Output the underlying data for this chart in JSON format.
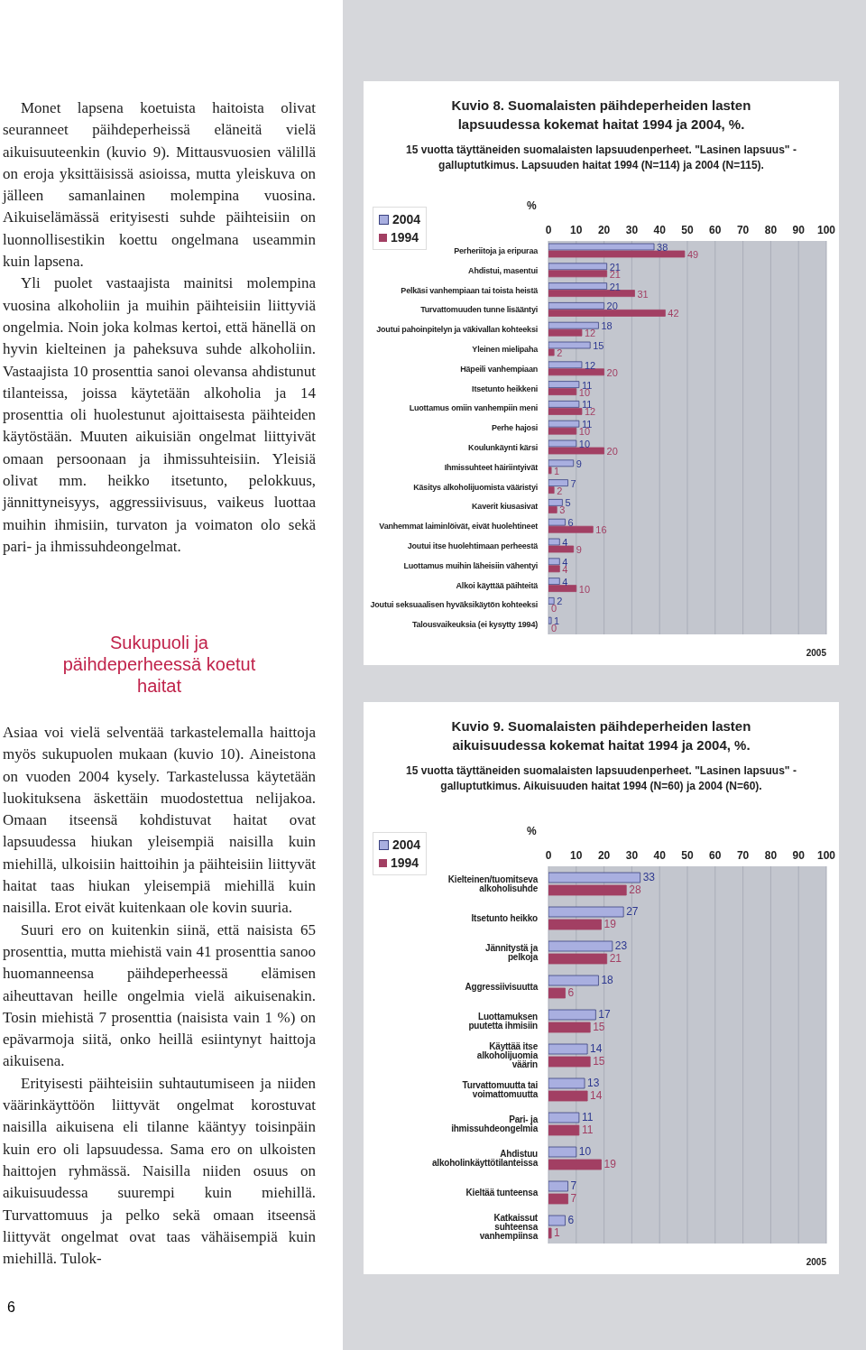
{
  "chart_data": [
    {
      "type": "other",
      "annotations": [
        "Monet lapsena koetuista haitoista olivat seuranneet päihdeperheissä eläneitä vielä aikuisuuteenkin (kuvio 9). Mittausvuosien välillä on eroja yksittäisissä asioissa, mutta yleiskuva on jälleen samanlainen molempina vuosina. Aikuiselämässä erityisesti suhde päihteisiin on luonnollisestikin koettu ongelmana useammin kuin lapsena.",
        "Yli puolet vastaajista mainitsi molempina vuosina alkoholiin ja muihin päihteisiin liittyviä ongelmia. Noin joka kolmas kertoi, että hänellä on hyvin kielteinen ja paheksuva suhde alkoholiin. Vastaajista 10 prosenttia sanoi olevansa ahdistunut tilanteissa, joissa käytetään alkoholia ja 14 prosenttia oli huolestunut ajoittaisesta päihteiden käytöstään. Muuten aikuisiän ongelmat liittyivät omaan persoonaan ja ihmissuhteisiin. Yleisiä olivat mm. heikko itsetunto, pelokkuus, jännittyneisyys, aggressiivisuus, vaikeus luottaa muihin ihmisiin, turvaton ja voimaton olo sekä pari- ja ihmissuhdeongelmat."
      ]
    },
    {
      "type": "other",
      "title": "Sukupuoli ja päihdeperheessä koetut haitat",
      "annotations": [
        "Asiaa voi vielä selventää tarkastelemalla haittoja myös sukupuolen mukaan (kuvio 10). Aineistona on vuoden 2004 kysely. Tarkastelussa käytetään luokituksena äskettäin muodostettua nelijakoa. Omaan itseensä kohdistuvat haitat ovat lapsuudessa hiukan yleisempiä naisilla kuin miehillä, ulkoisiin haittoihin ja päihteisiin liittyvät haitat taas hiukan yleisempiä miehillä kuin naisilla. Erot eivät kuitenkaan ole kovin suuria.",
        "Suuri ero on kuitenkin siinä, että naisista 65 prosenttia, mutta miehistä vain 41 prosenttia sanoo huomanneensa päihdeperheessä elämisen aiheuttavan heille ongelmia vielä aikuisenakin. Tosin miehistä 7 prosenttia (naisista vain 1 %) on epävarmoja siitä, onko heillä esiintynyt haittoja aikuisena.",
        "Erityisesti päihteisiin suhtautumiseen ja niiden väärinkäyttöön liittyvät ongelmat korostuvat naisilla aikuisena eli tilanne kääntyy toisinpäin kuin ero oli lapsuudessa. Sama ero on ulkoisten haittojen ryhmässä. Naisilla niiden osuus on aikuisuudessa suurempi kuin miehillä. Turvattomuus ja pelko sekä omaan itseensä liittyvät ongelmat ovat taas vähäisempiä kuin miehillä. Tulok-",
        "6"
      ]
    },
    {
      "type": "bar",
      "orientation": "horizontal",
      "title": "Kuvio 8. Suomalaisten päihdeperheiden lasten lapsuudessa kokemat haitat 1994 ja 2004, %.",
      "subtitle": "15 vuotta täyttäneiden suomalaisten lapsuudenperheet. \"Lasinen lapsuus\" -galluptutkimus. Lapsuuden haitat 1994 (N=114) ja 2004 (N=115).",
      "xlabel": "%",
      "categories": [
        "Perheriitoja ja eripuraa",
        "Ahdistui, masentui",
        "Pelkäsi vanhempiaan tai toista heistä",
        "Turvattomuuden tunne lisääntyi",
        "Joutui pahoinpitelyn ja väkivallan kohteeksi",
        "Yleinen mielipaha",
        "Häpeili vanhempiaan",
        "Itsetunto heikkeni",
        "Luottamus omiin vanhempiin meni",
        "Perhe hajosi",
        "Koulunkäynti kärsi",
        "Ihmissuhteet häiriintyivät",
        "Käsitys alkoholijuomista vääristyi",
        "Kaverit kiusasivat",
        "Vanhemmat laiminlöivät, eivät huolehtineet",
        "Joutui itse huolehtimaan perheestä",
        "Luottamus muihin läheisiin vähentyi",
        "Alkoi käyttää päihteitä",
        "Joutui seksuaalisen hyväksikäytön kohteeksi",
        "Talousvaikeuksia (ei kysytty 1994)"
      ],
      "series": [
        {
          "name": "2004",
          "color": "#a9afe0",
          "values": [
            38,
            21,
            21,
            20,
            18,
            15,
            12,
            11,
            11,
            11,
            10,
            9,
            7,
            5,
            6,
            4,
            4,
            4,
            2,
            1
          ]
        },
        {
          "name": "1994",
          "color": "#a23f63",
          "values": [
            49,
            21,
            31,
            42,
            12,
            2,
            20,
            10,
            12,
            10,
            20,
            1,
            2,
            3,
            16,
            9,
            4,
            10,
            0,
            0
          ]
        }
      ],
      "xlim": [
        0,
        100
      ],
      "xticks": [
        0,
        10,
        20,
        30,
        40,
        50,
        60,
        70,
        80,
        90,
        100
      ],
      "grid": "x",
      "legend": "top left",
      "data_labels": true,
      "annotations": [
        "2005"
      ]
    },
    {
      "type": "bar",
      "orientation": "horizontal",
      "title": "Kuvio 9. Suomalaisten päihdeperheiden lasten aikuisuudessa kokemat haitat 1994 ja 2004, %.",
      "subtitle": "15 vuotta täyttäneiden suomalaisten lapsuudenperheet. \"Lasinen lapsuus\" -galluptutkimus. Aikuisuuden haitat 1994 (N=60) ja 2004 (N=60).",
      "xlabel": "%",
      "categories": [
        "Kielteinen/tuomitseva alkoholisuhde",
        "Itsetunto heikko",
        "Jännitystä ja pelkoja",
        "Aggressiivisuutta",
        "Luottamuksen puutetta ihmisiin",
        "Käyttää itse alkoholijuomia väärin",
        "Turvattomuutta tai voimattomuutta",
        "Pari- ja ihmissuhdeongelmia",
        "Ahdistuu alkoholinkäyttötilanteissa",
        "Kieltää tunteensa",
        "Katkaissut suhteensa vanhempiinsa"
      ],
      "series": [
        {
          "name": "2004",
          "color": "#a9afe0",
          "values": [
            33,
            27,
            23,
            18,
            17,
            14,
            13,
            11,
            10,
            7,
            6
          ]
        },
        {
          "name": "1994",
          "color": "#a23f63",
          "values": [
            28,
            19,
            21,
            6,
            15,
            15,
            14,
            11,
            19,
            7,
            1
          ]
        }
      ],
      "xlim": [
        0,
        100
      ],
      "xticks": [
        0,
        10,
        20,
        30,
        40,
        50,
        60,
        70,
        80,
        90,
        100
      ],
      "grid": "x",
      "legend": "top left",
      "data_labels": true,
      "annotations": [
        "2005"
      ]
    }
  ]
}
